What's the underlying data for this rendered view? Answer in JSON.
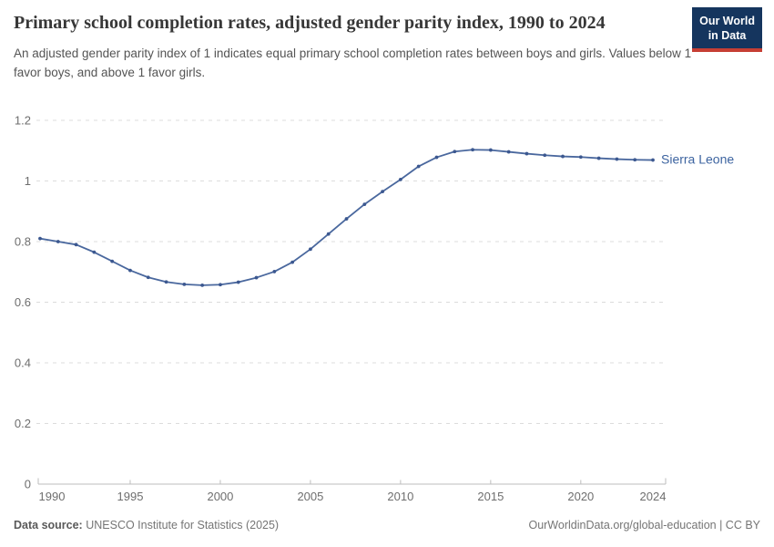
{
  "header": {
    "title": "Primary school completion rates, adjusted gender parity index, 1990 to 2024",
    "subtitle": "An adjusted gender parity index of 1 indicates equal primary school completion rates between boys and girls. Values below 1 favor boys, and above 1 favor girls.",
    "logo": {
      "line1": "Our World",
      "line2": "in Data",
      "bg_color": "#15355e",
      "accent_color": "#c63f35"
    }
  },
  "chart_data": {
    "type": "line",
    "title": "Primary school completion rates, adjusted gender parity index, 1990 to 2024",
    "xlabel": "",
    "ylabel": "",
    "xlim": [
      1990,
      2024
    ],
    "ylim": [
      0,
      1.2
    ],
    "x_ticks": [
      1990,
      1995,
      2000,
      2005,
      2010,
      2015,
      2020,
      2024
    ],
    "y_ticks": [
      0,
      0.2,
      0.4,
      0.6,
      0.8,
      1,
      1.2
    ],
    "y_tick_labels": [
      "0",
      "0.2",
      "0.4",
      "0.6",
      "0.8",
      "1",
      "1.2"
    ],
    "grid": "horizontal-dashed",
    "legend_position": "end-of-line-label",
    "x": [
      1990,
      1991,
      1992,
      1993,
      1994,
      1995,
      1996,
      1997,
      1998,
      1999,
      2000,
      2001,
      2002,
      2003,
      2004,
      2005,
      2006,
      2007,
      2008,
      2009,
      2010,
      2011,
      2012,
      2013,
      2014,
      2015,
      2016,
      2017,
      2018,
      2019,
      2020,
      2021,
      2022,
      2023,
      2024
    ],
    "series": [
      {
        "name": "Sierra Leone",
        "color": "#4a689e",
        "marker_color": "#3c5890",
        "label_color": "#3d64a0",
        "values": [
          0.81,
          0.8,
          0.79,
          0.765,
          0.735,
          0.705,
          0.682,
          0.667,
          0.659,
          0.656,
          0.658,
          0.666,
          0.681,
          0.701,
          0.732,
          0.775,
          0.825,
          0.875,
          0.923,
          0.965,
          1.005,
          1.048,
          1.078,
          1.097,
          1.103,
          1.102,
          1.096,
          1.09,
          1.085,
          1.081,
          1.079,
          1.075,
          1.072,
          1.07,
          1.069
        ]
      }
    ],
    "axis_color": "#bdbdbd",
    "grid_color": "#dcdcdc",
    "tick_label_color": "#6e6e6e"
  },
  "footer": {
    "source_label": "Data source:",
    "source_text": "UNESCO Institute for Statistics (2025)",
    "credit": "OurWorldinData.org/global-education | CC BY"
  }
}
